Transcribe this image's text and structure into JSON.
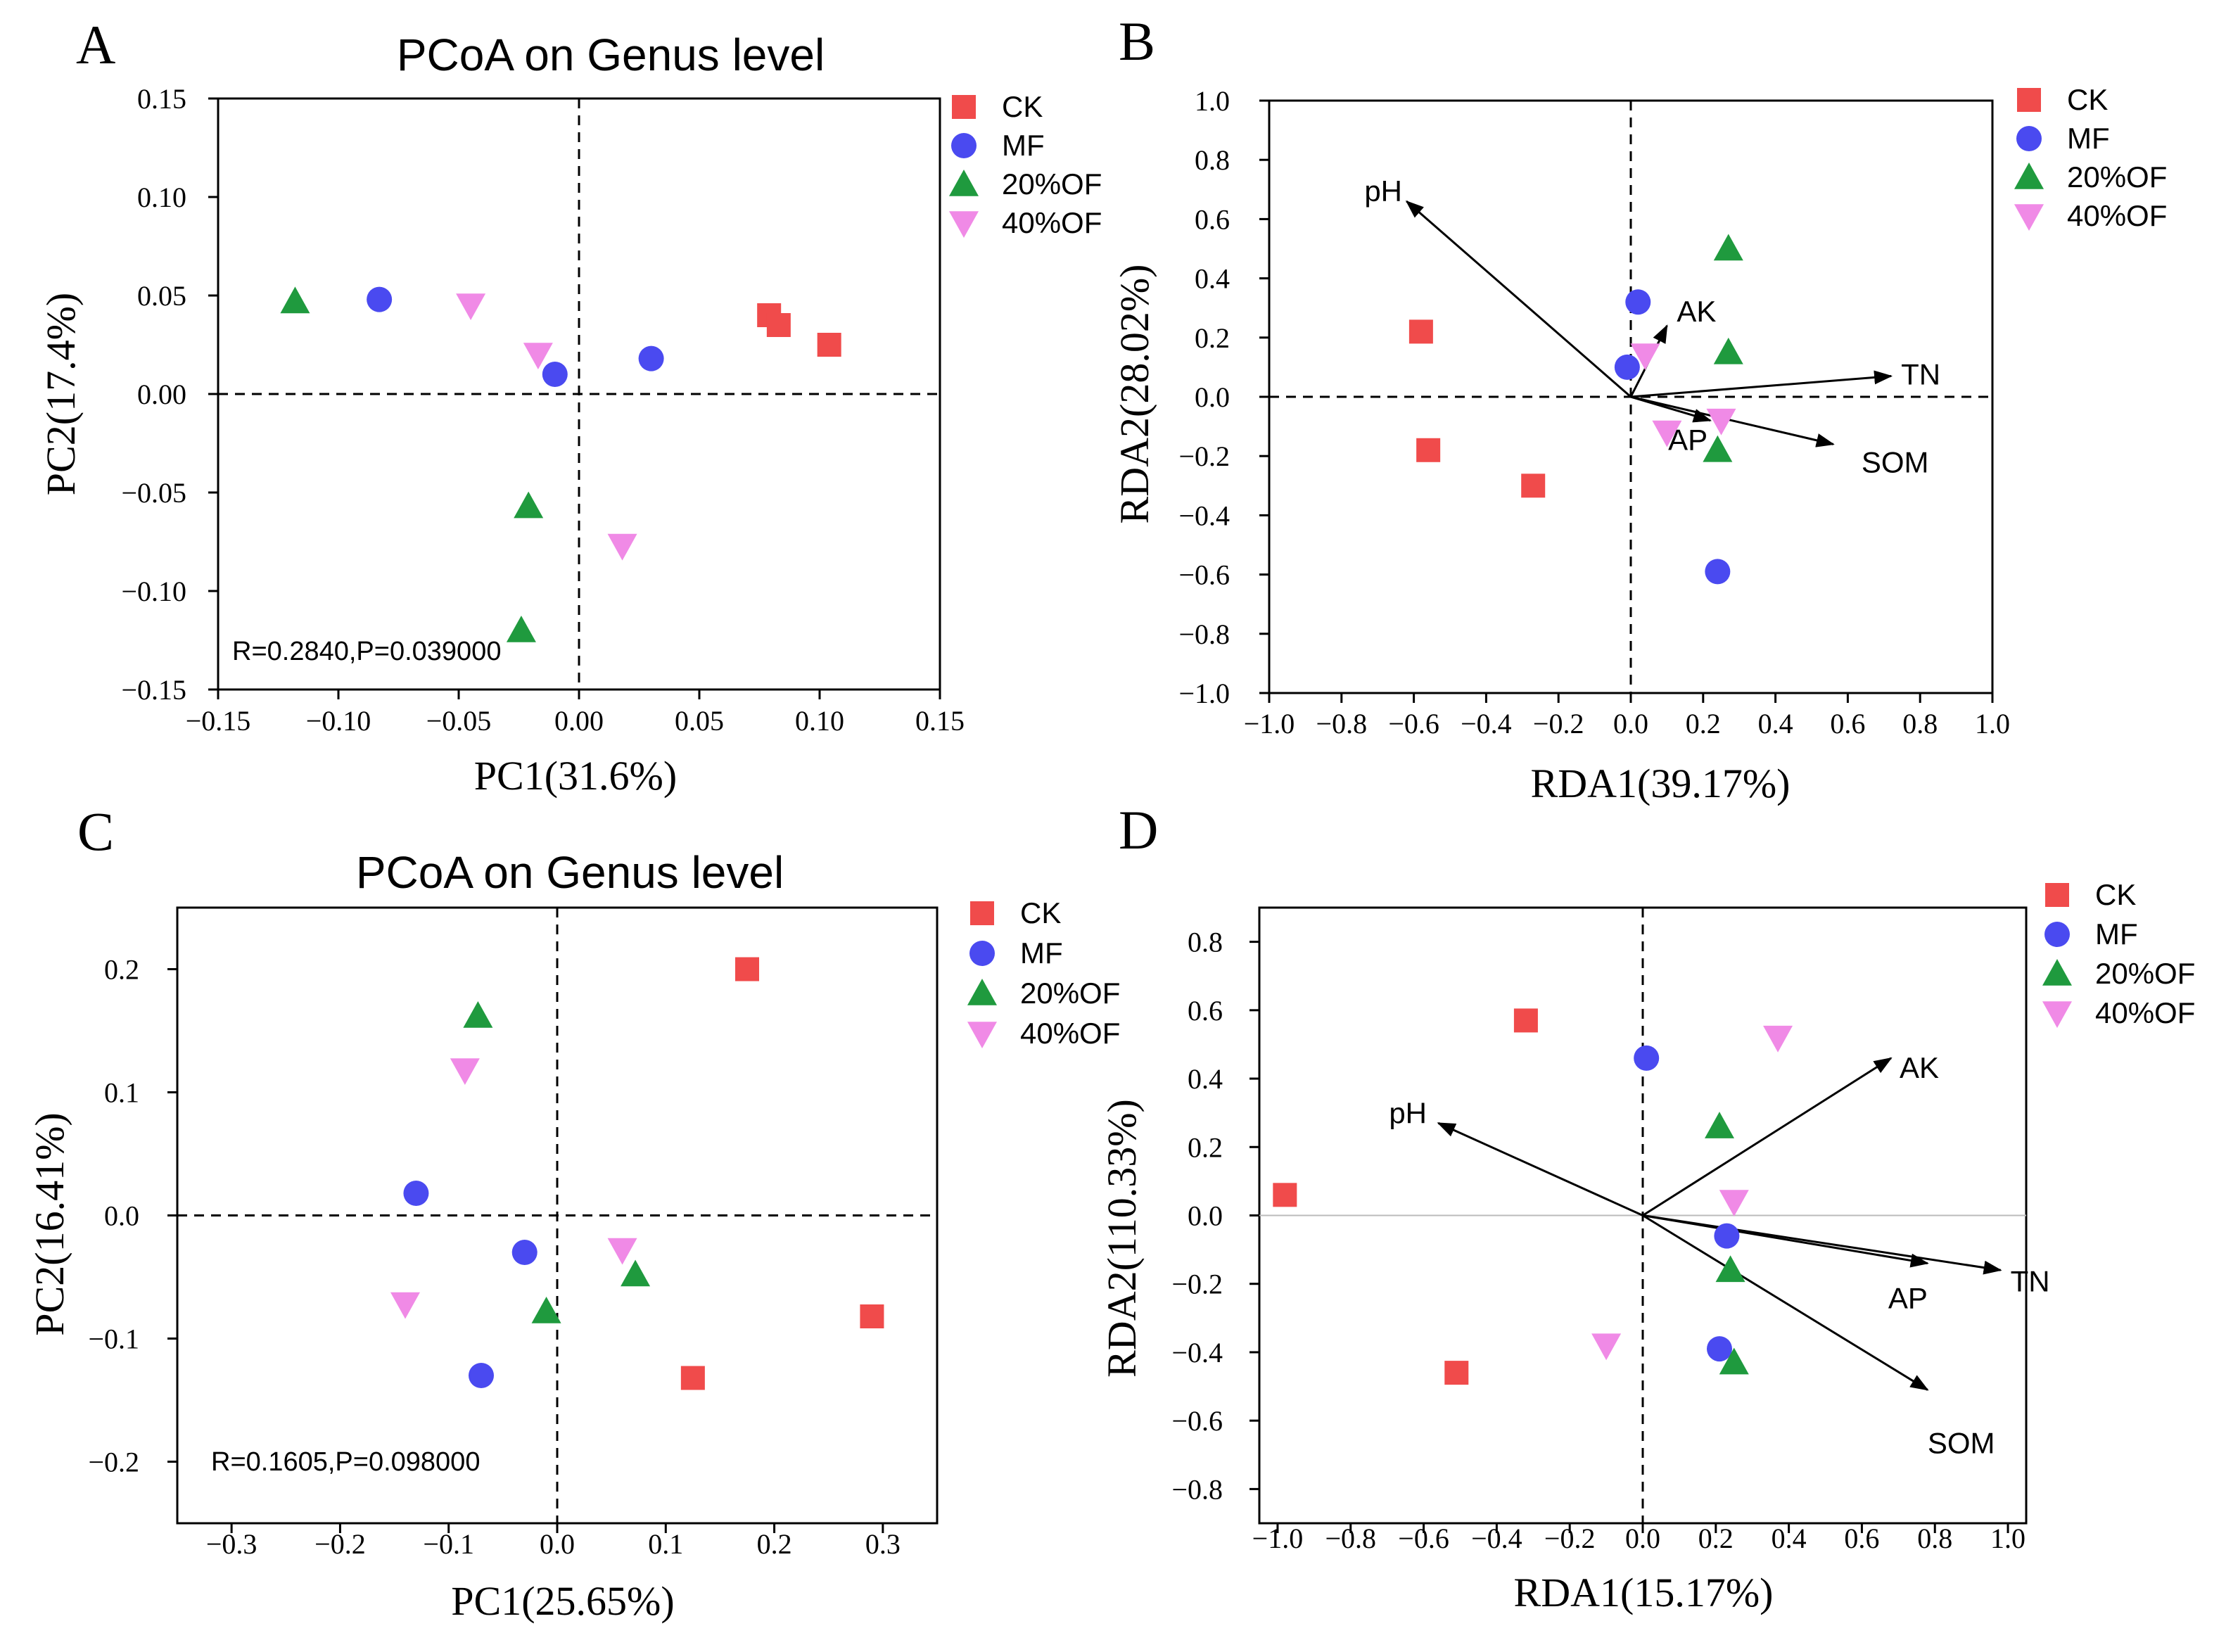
{
  "figure": {
    "colors": {
      "CK": "#f04b4b",
      "MF": "#4a4af0",
      "20%OF": "#1f9a3e",
      "40%OF": "#f08ae6",
      "axis": "#000000"
    }
  },
  "chart_data": [
    {
      "panel": "A",
      "type": "scatter",
      "title": "PCoA on Genus level",
      "xlabel": "PC1(31.6%)",
      "ylabel": "PC2(17.4%)",
      "xlim": [
        -0.15,
        0.15
      ],
      "ylim": [
        -0.15,
        0.15
      ],
      "xticks": [
        -0.15,
        -0.1,
        -0.05,
        0.0,
        0.05,
        0.1,
        0.15
      ],
      "yticks": [
        -0.15,
        -0.1,
        -0.05,
        0.0,
        0.05,
        0.1,
        0.15
      ],
      "xtick_labels": [
        "−0.15",
        "−0.10",
        "−0.05",
        "0.00",
        "0.05",
        "0.10",
        "0.15"
      ],
      "ytick_labels": [
        "−0.15",
        "−0.10",
        "−0.05",
        "0.00",
        "0.05",
        "0.10",
        "0.15"
      ],
      "annotation": "R=0.2840,P=0.039000",
      "legend": [
        "CK",
        "MF",
        "20%OF",
        "40%OF"
      ],
      "series": [
        {
          "name": "CK",
          "marker": "square",
          "points": [
            [
              0.079,
              0.04
            ],
            [
              0.083,
              0.035
            ],
            [
              0.104,
              0.025
            ]
          ]
        },
        {
          "name": "MF",
          "marker": "circle",
          "points": [
            [
              -0.083,
              0.048
            ],
            [
              -0.01,
              0.01
            ],
            [
              0.03,
              0.018
            ]
          ]
        },
        {
          "name": "20%OF",
          "marker": "triangle-up",
          "points": [
            [
              -0.118,
              0.047
            ],
            [
              -0.021,
              -0.057
            ],
            [
              -0.024,
              -0.12
            ]
          ]
        },
        {
          "name": "40%OF",
          "marker": "triangle-down",
          "points": [
            [
              -0.045,
              0.045
            ],
            [
              -0.017,
              0.02
            ],
            [
              0.018,
              -0.077
            ]
          ]
        }
      ]
    },
    {
      "panel": "B",
      "type": "scatter",
      "title": "",
      "xlabel": "RDA1(39.17%)",
      "ylabel": "RDA2(28.02%)",
      "xlim": [
        -1.0,
        1.0
      ],
      "ylim": [
        -1.0,
        1.0
      ],
      "xticks": [
        -1.0,
        -0.8,
        -0.6,
        -0.4,
        -0.2,
        0.0,
        0.2,
        0.4,
        0.6,
        0.8,
        1.0
      ],
      "yticks": [
        -1.0,
        -0.8,
        -0.6,
        -0.4,
        -0.2,
        0.0,
        0.2,
        0.4,
        0.6,
        0.8,
        1.0
      ],
      "xtick_labels": [
        "−1.0",
        "−0.8",
        "−0.6",
        "−0.4",
        "−0.2",
        "0.0",
        "0.2",
        "0.4",
        "0.6",
        "0.8",
        "1.0"
      ],
      "ytick_labels": [
        "−1.0",
        "−0.8",
        "−0.6",
        "−0.4",
        "−0.2",
        "0.0",
        "0.2",
        "0.4",
        "0.6",
        "0.8",
        "1.0"
      ],
      "annotation": "",
      "legend": [
        "CK",
        "MF",
        "20%OF",
        "40%OF"
      ],
      "series": [
        {
          "name": "CK",
          "marker": "square",
          "points": [
            [
              -0.58,
              0.22
            ],
            [
              -0.56,
              -0.18
            ],
            [
              -0.27,
              -0.3
            ]
          ]
        },
        {
          "name": "MF",
          "marker": "circle",
          "points": [
            [
              0.02,
              0.32
            ],
            [
              -0.01,
              0.1
            ],
            [
              0.24,
              -0.59
            ]
          ]
        },
        {
          "name": "20%OF",
          "marker": "triangle-up",
          "points": [
            [
              0.27,
              0.5
            ],
            [
              0.27,
              0.15
            ],
            [
              0.24,
              -0.18
            ]
          ]
        },
        {
          "name": "40%OF",
          "marker": "triangle-down",
          "points": [
            [
              0.04,
              0.14
            ],
            [
              0.1,
              -0.12
            ],
            [
              0.25,
              -0.08
            ]
          ]
        }
      ],
      "vectors": [
        {
          "label": "pH",
          "x": -0.62,
          "y": 0.66
        },
        {
          "label": "AK",
          "x": 0.1,
          "y": 0.24
        },
        {
          "label": "TN",
          "x": 0.72,
          "y": 0.07
        },
        {
          "label": "AP",
          "x": 0.22,
          "y": -0.08
        },
        {
          "label": "SOM",
          "x": 0.56,
          "y": -0.16
        }
      ]
    },
    {
      "panel": "C",
      "type": "scatter",
      "title": "PCoA on Genus level",
      "xlabel": "PC1(25.65%)",
      "ylabel": "PC2(16.41%)",
      "xlim": [
        -0.35,
        0.35
      ],
      "ylim": [
        -0.25,
        0.25
      ],
      "xticks": [
        -0.3,
        -0.2,
        -0.1,
        0.0,
        0.1,
        0.2,
        0.3
      ],
      "yticks": [
        -0.2,
        -0.1,
        0.0,
        0.1,
        0.2
      ],
      "xtick_labels": [
        "−0.3",
        "−0.2",
        "−0.1",
        "0.0",
        "0.1",
        "0.2",
        "0.3"
      ],
      "ytick_labels": [
        "−0.2",
        "−0.1",
        "0.0",
        "0.1",
        "0.2"
      ],
      "annotation": "R=0.1605,P=0.098000",
      "legend": [
        "CK",
        "MF",
        "20%OF",
        "40%OF"
      ],
      "series": [
        {
          "name": "CK",
          "marker": "square",
          "points": [
            [
              0.175,
              0.2
            ],
            [
              0.29,
              -0.082
            ],
            [
              0.125,
              -0.132
            ]
          ]
        },
        {
          "name": "MF",
          "marker": "circle",
          "points": [
            [
              -0.13,
              0.018
            ],
            [
              -0.03,
              -0.03
            ],
            [
              -0.07,
              -0.13
            ]
          ]
        },
        {
          "name": "20%OF",
          "marker": "triangle-up",
          "points": [
            [
              -0.073,
              0.162
            ],
            [
              0.072,
              -0.048
            ],
            [
              -0.01,
              -0.078
            ]
          ]
        },
        {
          "name": "40%OF",
          "marker": "triangle-down",
          "points": [
            [
              -0.085,
              0.118
            ],
            [
              0.06,
              -0.028
            ],
            [
              -0.14,
              -0.072
            ]
          ]
        }
      ]
    },
    {
      "panel": "D",
      "type": "scatter",
      "title": "",
      "xlabel": "RDA1(15.17%)",
      "ylabel": "RDA2(110.33%)",
      "xlim": [
        -1.05,
        1.05
      ],
      "ylim": [
        -0.9,
        0.9
      ],
      "xticks": [
        -1.0,
        -0.8,
        -0.6,
        -0.4,
        -0.2,
        0.0,
        0.2,
        0.4,
        0.6,
        0.8,
        1.0
      ],
      "yticks": [
        -0.8,
        -0.6,
        -0.4,
        -0.2,
        0.0,
        0.2,
        0.4,
        0.6,
        0.8
      ],
      "xtick_labels": [
        "−1.0",
        "−0.8",
        "−0.6",
        "−0.4",
        "−0.2",
        "0.0",
        "0.2",
        "0.4",
        "0.6",
        "0.8",
        "1.0"
      ],
      "ytick_labels": [
        "−0.8",
        "−0.6",
        "−0.4",
        "−0.2",
        "0.0",
        "0.2",
        "0.4",
        "0.6",
        "0.8"
      ],
      "annotation": "",
      "legend": [
        "CK",
        "MF",
        "20%OF",
        "40%OF"
      ],
      "series": [
        {
          "name": "CK",
          "marker": "square",
          "points": [
            [
              -0.32,
              0.57
            ],
            [
              -0.98,
              0.06
            ],
            [
              -0.51,
              -0.46
            ]
          ]
        },
        {
          "name": "MF",
          "marker": "circle",
          "points": [
            [
              0.01,
              0.46
            ],
            [
              0.23,
              -0.06
            ],
            [
              0.21,
              -0.39
            ]
          ]
        },
        {
          "name": "20%OF",
          "marker": "triangle-up",
          "points": [
            [
              0.21,
              0.26
            ],
            [
              0.24,
              -0.16
            ],
            [
              0.25,
              -0.43
            ]
          ]
        },
        {
          "name": "40%OF",
          "marker": "triangle-down",
          "points": [
            [
              0.37,
              0.52
            ],
            [
              0.25,
              0.04
            ],
            [
              -0.1,
              -0.38
            ]
          ]
        }
      ],
      "vectors": [
        {
          "label": "pH",
          "x": -0.56,
          "y": 0.27
        },
        {
          "label": "AK",
          "x": 0.68,
          "y": 0.46
        },
        {
          "label": "TN",
          "x": 0.98,
          "y": -0.16
        },
        {
          "label": "AP",
          "x": 0.78,
          "y": -0.14
        },
        {
          "label": "SOM",
          "x": 0.78,
          "y": -0.51
        }
      ]
    }
  ]
}
